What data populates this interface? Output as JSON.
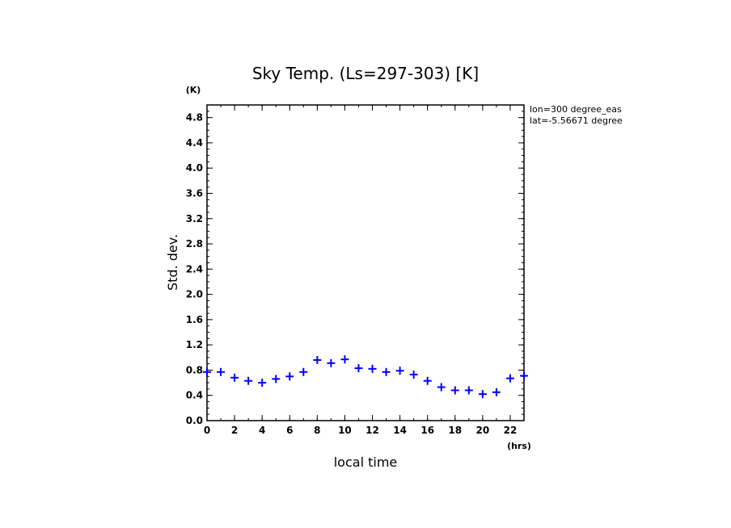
{
  "chart_data": {
    "type": "scatter",
    "title": "Sky Temp. (Ls=297-303) [K]",
    "xlabel": "local time",
    "ylabel": "Std. dev.",
    "x_unit": "(hrs)",
    "y_unit": "(K)",
    "xlim": [
      0,
      23
    ],
    "ylim": [
      0,
      5.0
    ],
    "x_ticks": [
      "0",
      "2",
      "4",
      "6",
      "8",
      "10",
      "12",
      "14",
      "16",
      "18",
      "20",
      "22"
    ],
    "y_ticks": [
      "0.0",
      "0.4",
      "0.8",
      "1.2",
      "1.6",
      "2.0",
      "2.4",
      "2.8",
      "3.2",
      "3.6",
      "4.0",
      "4.4",
      "4.8"
    ],
    "annotations": [
      "lon=300 degree_eas",
      "lat=-5.56671 degree"
    ],
    "marker_color": "#0000ff",
    "marker": "plus",
    "x": [
      0,
      1,
      2,
      3,
      4,
      5,
      6,
      7,
      8,
      9,
      10,
      11,
      12,
      13,
      14,
      15,
      16,
      17,
      18,
      19,
      20,
      21,
      22,
      23
    ],
    "y": [
      0.77,
      0.77,
      0.68,
      0.63,
      0.6,
      0.66,
      0.7,
      0.77,
      0.96,
      0.91,
      0.97,
      0.83,
      0.82,
      0.77,
      0.79,
      0.73,
      0.63,
      0.53,
      0.48,
      0.48,
      0.42,
      0.45,
      0.67,
      0.71
    ]
  }
}
